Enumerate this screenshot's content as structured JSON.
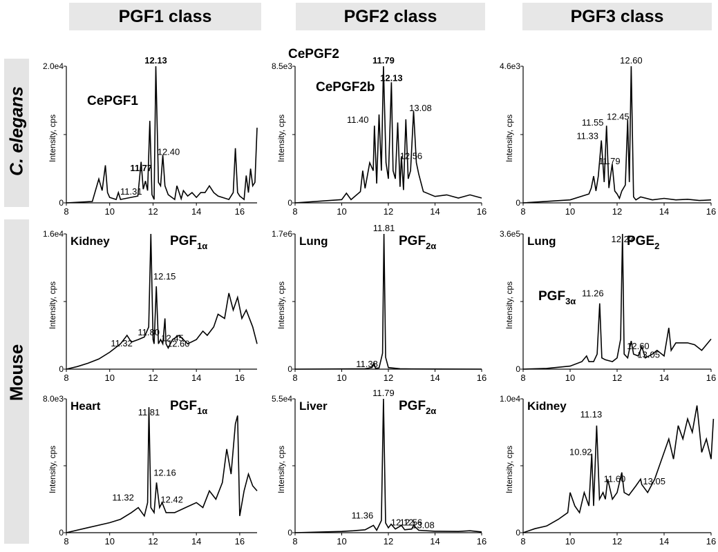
{
  "column_headers": [
    "PGF1 class",
    "PGF2 class",
    "PGF3 class"
  ],
  "row_labels": [
    "C. elegans",
    "Mouse"
  ],
  "chart_data": [
    {
      "type": "line",
      "panel": "C. elegans / PGF1 class",
      "ylabel": "Intensity, cps",
      "ymax_label": "2.0e4",
      "ylim": [
        0,
        20000
      ],
      "xlim": [
        8,
        16.8
      ],
      "xticks": [
        8,
        10,
        12,
        14,
        16
      ],
      "title_labels": [
        {
          "text": "CePGF1",
          "sub": "",
          "at": 11.77
        }
      ],
      "x": [
        8,
        9.2,
        9.5,
        9.65,
        9.8,
        9.9,
        10,
        10.3,
        10.4,
        10.5,
        11.3,
        11.45,
        11.55,
        11.65,
        11.75,
        11.85,
        11.95,
        12.05,
        12.13,
        12.25,
        12.35,
        12.45,
        12.55,
        12.7,
        13,
        13.1,
        13.3,
        13.4,
        13.6,
        13.8,
        14,
        14.2,
        14.4,
        14.6,
        14.8,
        15,
        15.5,
        15.7,
        15.8,
        15.9,
        16,
        16.2,
        16.3,
        16.4,
        16.5,
        16.6,
        16.7,
        16.8
      ],
      "y": [
        0,
        200,
        3500,
        1800,
        5500,
        1500,
        800,
        500,
        1500,
        500,
        1000,
        6000,
        2000,
        3200,
        1800,
        12000,
        1200,
        500,
        20000,
        3000,
        2500,
        7000,
        2500,
        1200,
        500,
        2500,
        600,
        1800,
        1000,
        1500,
        800,
        1500,
        1500,
        2500,
        1500,
        1000,
        500,
        1500,
        8000,
        1500,
        1000,
        500,
        4000,
        1500,
        5000,
        2500,
        3000,
        11000
      ],
      "labels": [
        {
          "text": "12.13",
          "x": 12.13,
          "bold": true
        },
        {
          "text": "11.77",
          "x": 11.77,
          "bold": true
        },
        {
          "text": "11.31",
          "x": 11.31
        },
        {
          "text": "12.40",
          "x": 12.4
        }
      ]
    },
    {
      "type": "line",
      "panel": "C. elegans / PGF2 class",
      "ylabel": "Intensity, cps",
      "ymax_label": "8.5e3",
      "ylim": [
        0,
        8500
      ],
      "xlim": [
        8,
        16
      ],
      "xticks": [
        8,
        10,
        12,
        14,
        16
      ],
      "title_labels": [
        {
          "text": "CePGF2",
          "sub": "",
          "at": 11.79
        },
        {
          "text": "CePGF2b",
          "sub": "",
          "at": 12.13
        }
      ],
      "x": [
        8,
        10,
        10.2,
        10.4,
        10.8,
        10.9,
        11,
        11.2,
        11.35,
        11.4,
        11.5,
        11.6,
        11.7,
        11.79,
        11.9,
        12,
        12.13,
        12.2,
        12.3,
        12.4,
        12.5,
        12.56,
        12.65,
        12.75,
        12.85,
        12.95,
        13.08,
        13.2,
        13.3,
        13.5,
        14,
        14.5,
        15,
        15.5,
        16
      ],
      "y": [
        0,
        200,
        600,
        200,
        700,
        2000,
        900,
        2500,
        2000,
        4800,
        1200,
        5500,
        2000,
        8500,
        2500,
        1500,
        7500,
        2000,
        1500,
        5000,
        1000,
        2900,
        800,
        5200,
        1500,
        2000,
        5700,
        2500,
        1800,
        700,
        400,
        500,
        300,
        500,
        300
      ],
      "labels": [
        {
          "text": "11.79",
          "x": 11.79,
          "bold": true
        },
        {
          "text": "12.13",
          "x": 12.13,
          "bold": true
        },
        {
          "text": "11.40",
          "x": 11.4
        },
        {
          "text": "12.56",
          "x": 12.56
        },
        {
          "text": "13.08",
          "x": 13.08
        }
      ]
    },
    {
      "type": "line",
      "panel": "C. elegans / PGF3 class",
      "ylabel": "Intensity, cps",
      "ymax_label": "4.6e3",
      "ylim": [
        0,
        4600
      ],
      "xlim": [
        8,
        16
      ],
      "xticks": [
        8,
        10,
        12,
        14,
        16
      ],
      "title_labels": [],
      "x": [
        8,
        10,
        10.8,
        10.9,
        11,
        11.1,
        11.2,
        11.33,
        11.45,
        11.55,
        11.65,
        11.79,
        11.9,
        12,
        12.1,
        12.2,
        12.35,
        12.45,
        12.52,
        12.6,
        12.7,
        12.8,
        13,
        13.5,
        14,
        14.5,
        15,
        15.5,
        16
      ],
      "y": [
        0,
        100,
        300,
        500,
        900,
        400,
        900,
        2100,
        700,
        2600,
        500,
        1300,
        400,
        300,
        150,
        400,
        600,
        2800,
        700,
        4600,
        200,
        100,
        200,
        100,
        150,
        100,
        120,
        80,
        100
      ],
      "labels": [
        {
          "text": "12.60",
          "x": 12.6
        },
        {
          "text": "12.45",
          "x": 12.45
        },
        {
          "text": "11.79",
          "x": 11.79
        },
        {
          "text": "11.55",
          "x": 11.55
        },
        {
          "text": "11.33",
          "x": 11.33
        }
      ]
    },
    {
      "type": "line",
      "panel": "Mouse Kidney / PGF1 class",
      "ylabel": "Intensity, cps",
      "ymax_label": "1.6e4",
      "ylim": [
        0,
        16000
      ],
      "xlim": [
        8,
        16.8
      ],
      "xticks": [
        8,
        10,
        12,
        14,
        16
      ],
      "title_labels": [
        {
          "text": "Kidney",
          "sub": "",
          "at": null
        },
        {
          "text": "PGF",
          "sub": "1α",
          "at": 11.8
        }
      ],
      "x": [
        8,
        8.5,
        9,
        9.5,
        10,
        10.5,
        10.8,
        11,
        11.32,
        11.6,
        11.8,
        11.9,
        12,
        12.05,
        12.15,
        12.25,
        12.35,
        12.45,
        12.55,
        12.6,
        12.7,
        12.9,
        13.2,
        13.6,
        14,
        14.3,
        14.5,
        14.8,
        15,
        15.3,
        15.5,
        15.7,
        15.9,
        16.1,
        16.3,
        16.6,
        16.8
      ],
      "y": [
        0,
        300,
        700,
        1200,
        2000,
        3000,
        4000,
        3200,
        3500,
        3800,
        5000,
        16000,
        3500,
        3000,
        9800,
        3000,
        3500,
        3000,
        6000,
        3000,
        2500,
        3500,
        4000,
        3000,
        3500,
        4500,
        4000,
        5000,
        6500,
        6000,
        9000,
        7000,
        8500,
        6000,
        7000,
        5000,
        3000
      ],
      "labels": [
        {
          "text": "11.80",
          "x": 11.8
        },
        {
          "text": "12.15",
          "x": 12.15
        },
        {
          "text": "12.45",
          "x": 12.45
        },
        {
          "text": "12.60",
          "x": 12.6
        },
        {
          "text": "11.32",
          "x": 11.32
        }
      ]
    },
    {
      "type": "line",
      "panel": "Mouse Lung / PGF2 class",
      "ylabel": "Intensity, cps",
      "ymax_label": "1.7e6",
      "ylim": [
        0,
        1700000
      ],
      "xlim": [
        8,
        16
      ],
      "xticks": [
        8,
        10,
        12,
        14,
        16
      ],
      "title_labels": [
        {
          "text": "Lung",
          "sub": "",
          "at": null
        },
        {
          "text": "PGF",
          "sub": "2α",
          "at": 11.81
        }
      ],
      "x": [
        8,
        11,
        11.3,
        11.38,
        11.45,
        11.6,
        11.75,
        11.81,
        11.88,
        12,
        12.5,
        13,
        16
      ],
      "y": [
        0,
        5000,
        20000,
        80000,
        10000,
        15000,
        200000,
        1700000,
        150000,
        20000,
        5000,
        3000,
        0
      ],
      "labels": [
        {
          "text": "11.81",
          "x": 11.81
        },
        {
          "text": "11.38",
          "x": 11.38
        }
      ]
    },
    {
      "type": "line",
      "panel": "Mouse Lung / PGF3 class",
      "ylabel": "Intensity, cps",
      "ymax_label": "3.6e5",
      "ylim": [
        0,
        360000
      ],
      "xlim": [
        8,
        16
      ],
      "xticks": [
        8,
        10,
        12,
        14,
        16
      ],
      "title_labels": [
        {
          "text": "Lung",
          "sub": "",
          "at": null
        },
        {
          "text": "PGE",
          "sub": "2",
          "at": 12.23
        },
        {
          "text": "PGF",
          "sub": "3α",
          "at": 11.26
        }
      ],
      "x": [
        8,
        9,
        10,
        10.5,
        10.7,
        10.8,
        11,
        11.15,
        11.26,
        11.35,
        11.5,
        11.8,
        12,
        12.15,
        12.23,
        12.3,
        12.45,
        12.6,
        12.7,
        12.9,
        13.05,
        13.2,
        13.5,
        13.7,
        14,
        14.2,
        14.3,
        14.5,
        15,
        15.3,
        15.6,
        16
      ],
      "y": [
        0,
        2000,
        8000,
        20000,
        35000,
        20000,
        20000,
        40000,
        175000,
        30000,
        25000,
        20000,
        30000,
        80000,
        360000,
        40000,
        30000,
        75000,
        40000,
        35000,
        60000,
        30000,
        40000,
        50000,
        35000,
        110000,
        50000,
        70000,
        70000,
        65000,
        50000,
        80000
      ],
      "labels": [
        {
          "text": "12.23",
          "x": 12.23
        },
        {
          "text": "11.26",
          "x": 11.26
        },
        {
          "text": "12.60",
          "x": 12.6
        },
        {
          "text": "13.05",
          "x": 13.05
        }
      ]
    },
    {
      "type": "line",
      "panel": "Mouse Heart / PGF1 class",
      "ylabel": "Intensity, cps",
      "ymax_label": "8.0e3",
      "ylim": [
        0,
        8000
      ],
      "xlim": [
        8,
        16.8
      ],
      "xticks": [
        8,
        10,
        12,
        14,
        16
      ],
      "title_labels": [
        {
          "text": "Heart",
          "sub": "",
          "at": null
        },
        {
          "text": "PGF",
          "sub": "1α",
          "at": 11.81
        }
      ],
      "x": [
        8,
        9,
        10,
        10.5,
        11,
        11.32,
        11.6,
        11.75,
        11.81,
        11.9,
        12.05,
        12.16,
        12.3,
        12.42,
        12.6,
        13,
        13.5,
        14,
        14.3,
        14.6,
        14.9,
        15.2,
        15.4,
        15.6,
        15.8,
        15.9,
        16,
        16.2,
        16.4,
        16.6,
        16.8
      ],
      "y": [
        0,
        300,
        600,
        800,
        1200,
        1500,
        1000,
        1800,
        7500,
        1500,
        1200,
        3000,
        1500,
        1800,
        1200,
        1200,
        1500,
        1800,
        1500,
        2500,
        2000,
        3000,
        5000,
        3500,
        6500,
        7000,
        1000,
        2500,
        3500,
        2800,
        2500
      ],
      "labels": [
        {
          "text": "11.81",
          "x": 11.81
        },
        {
          "text": "12.16",
          "x": 12.16
        },
        {
          "text": "12.42",
          "x": 12.42
        },
        {
          "text": "11.32",
          "x": 11.32
        }
      ]
    },
    {
      "type": "line",
      "panel": "Mouse Liver / PGF2 class",
      "ylabel": "Intensity, cps",
      "ymax_label": "5.5e4",
      "ylim": [
        0,
        55000
      ],
      "xlim": [
        8,
        16
      ],
      "xticks": [
        8,
        10,
        12,
        14,
        16
      ],
      "title_labels": [
        {
          "text": "Liver",
          "sub": "",
          "at": null
        },
        {
          "text": "PGF",
          "sub": "2α",
          "at": 11.79
        }
      ],
      "x": [
        8,
        10,
        10.5,
        11,
        11.36,
        11.5,
        11.7,
        11.79,
        11.88,
        12,
        12.12,
        12.3,
        12.56,
        12.7,
        13,
        13.08,
        13.3,
        14,
        15,
        15.5,
        16
      ],
      "y": [
        0,
        500,
        800,
        1200,
        3000,
        1000,
        5000,
        55000,
        4000,
        2000,
        3500,
        1500,
        3000,
        1200,
        1500,
        3000,
        1000,
        600,
        500,
        800,
        300
      ],
      "labels": [
        {
          "text": "11.79",
          "x": 11.79
        },
        {
          "text": "12.12",
          "x": 12.12
        },
        {
          "text": "12.56",
          "x": 12.56
        },
        {
          "text": "13.08",
          "x": 13.08
        },
        {
          "text": "11.36",
          "x": 11.36
        }
      ]
    },
    {
      "type": "line",
      "panel": "Mouse Kidney / PGF3 class",
      "ylabel": "Intensity, cps",
      "ymax_label": "1.0e4",
      "ylim": [
        0,
        10000
      ],
      "xlim": [
        8,
        16
      ],
      "xticks": [
        8,
        10,
        12,
        14,
        16
      ],
      "title_labels": [
        {
          "text": "Kidney",
          "sub": "",
          "at": null
        }
      ],
      "x": [
        8,
        8.5,
        9,
        9.5,
        9.9,
        10,
        10.2,
        10.4,
        10.6,
        10.8,
        10.92,
        11,
        11.13,
        11.25,
        11.4,
        11.5,
        11.6,
        11.8,
        12,
        12.2,
        12.3,
        12.5,
        12.8,
        13,
        13.05,
        13.3,
        13.6,
        13.8,
        14,
        14.2,
        14.4,
        14.6,
        14.8,
        15,
        15.2,
        15.4,
        15.6,
        15.8,
        16,
        16.1
      ],
      "y": [
        0,
        300,
        500,
        1000,
        1500,
        3000,
        2000,
        1500,
        3000,
        2000,
        5900,
        2000,
        8000,
        2500,
        3000,
        2500,
        4000,
        2500,
        3000,
        4500,
        3000,
        2800,
        3500,
        4000,
        3600,
        3000,
        4000,
        5000,
        6000,
        7000,
        5500,
        8000,
        7000,
        8500,
        7500,
        9500,
        6000,
        7000,
        5500,
        8500
      ],
      "labels": [
        {
          "text": "11.13",
          "x": 11.13
        },
        {
          "text": "10.92",
          "x": 10.92
        },
        {
          "text": "11.60",
          "x": 11.6
        },
        {
          "text": "13.05",
          "x": 13.05
        }
      ]
    }
  ]
}
